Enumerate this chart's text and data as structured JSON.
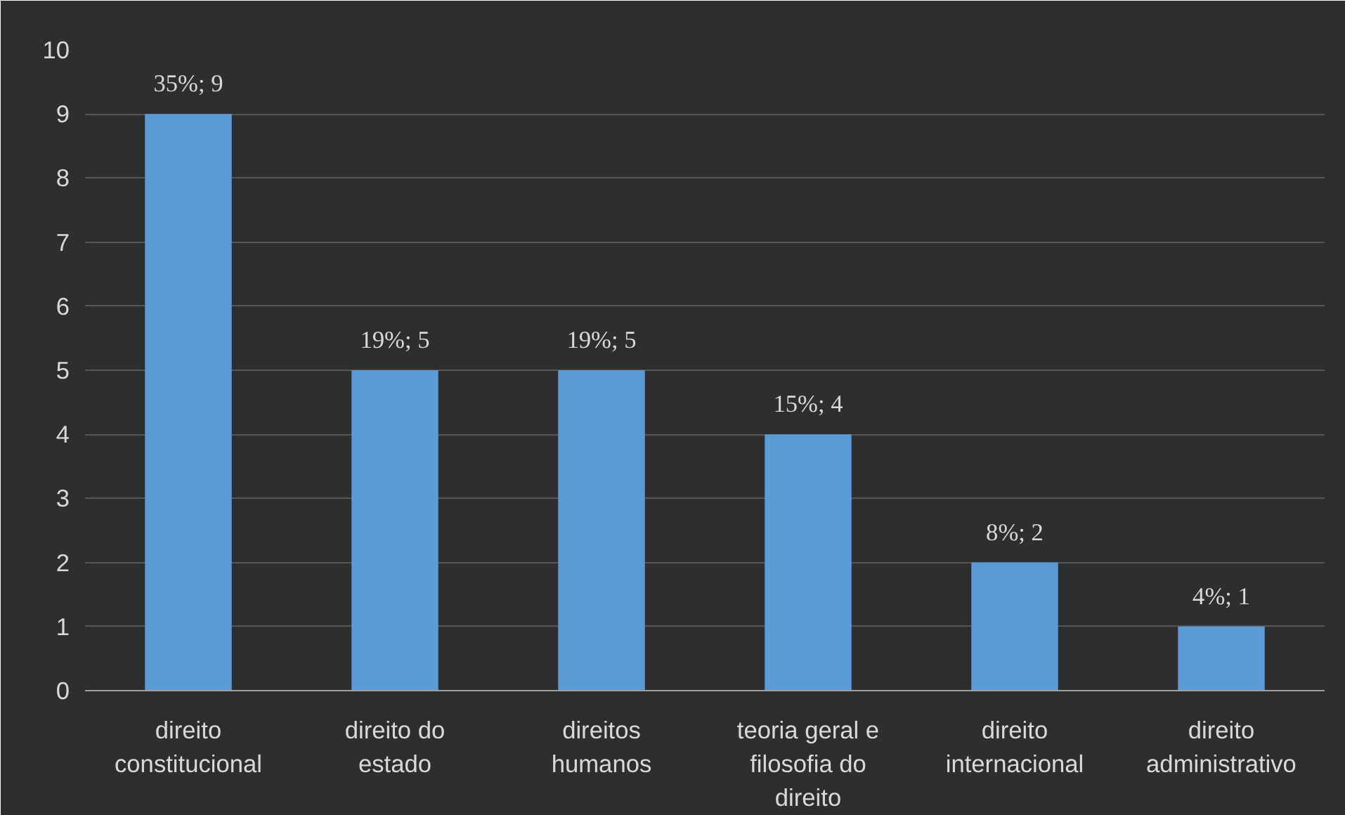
{
  "chart_data": {
    "type": "bar",
    "categories": [
      "direito constitucional",
      "direito do estado",
      "direitos humanos",
      "teoria geral e filosofia do direito",
      "direito internacional",
      "direito administrativo"
    ],
    "values": [
      9,
      5,
      5,
      4,
      2,
      1
    ],
    "value_labels": [
      "35%; 9",
      "19%; 5",
      "19%; 5",
      "15%; 4",
      "8%; 2",
      "4%; 1"
    ],
    "color": "#5b9bd5",
    "ylim": [
      0,
      10
    ],
    "yticks": [
      0,
      1,
      2,
      3,
      4,
      5,
      6,
      7,
      8,
      9,
      10
    ],
    "grid": "y"
  }
}
